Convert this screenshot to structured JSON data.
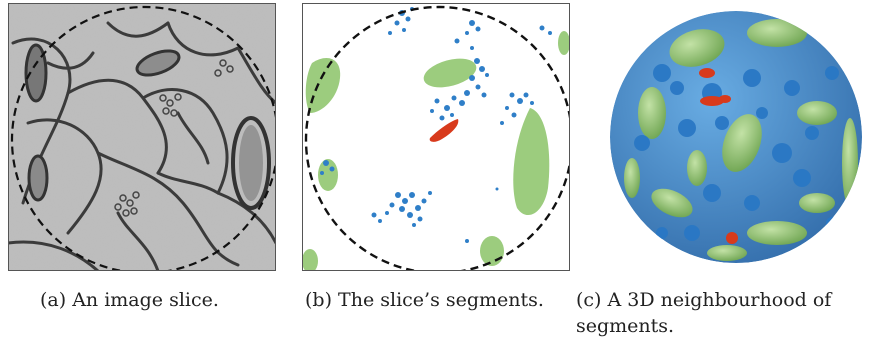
{
  "figure": {
    "panels": [
      {
        "id": "a",
        "caption_label": "(a)",
        "caption_text": "An image slice.",
        "content": "grayscale electron microscopy image slice with dashed circle"
      },
      {
        "id": "b",
        "caption_label": "(b)",
        "caption_text": "The slice’s segments.",
        "content": "2D segmentation of slice: green, blue and red segments with dashed circle"
      },
      {
        "id": "c",
        "caption_label": "(c)",
        "caption_text_line1": "A 3D neighbourhood of",
        "caption_text_line2": "segments.",
        "content": "3D rendering of segments inside a sphere"
      }
    ],
    "colors": {
      "green_segment": "#9ccc7e",
      "blue_segment": "#2f7fc8",
      "red_segment": "#d83a1c",
      "circle": "#111111",
      "em_background": "#b9b9b9"
    }
  }
}
